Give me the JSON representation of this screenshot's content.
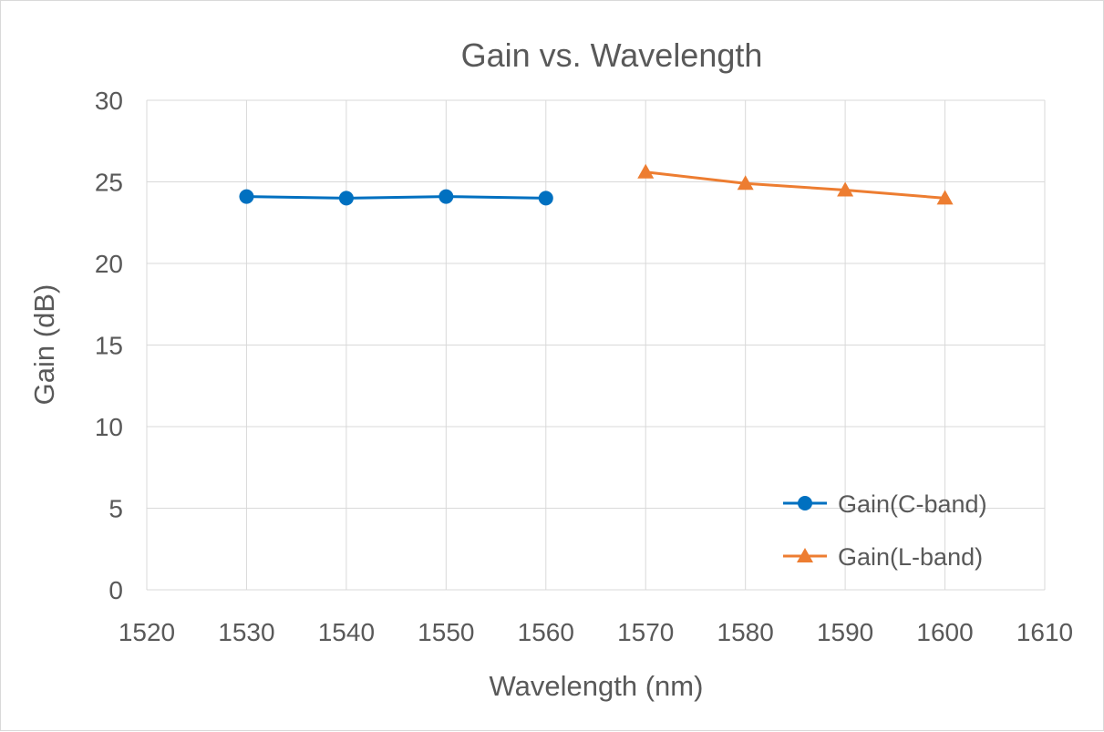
{
  "chart_data": {
    "type": "line",
    "title": "Gain vs. Wavelength",
    "xlabel": "Wavelength (nm)",
    "ylabel": "Gain (dB)",
    "xlim": [
      1520,
      1610
    ],
    "ylim": [
      0,
      30
    ],
    "xticks": [
      "1520",
      "1530",
      "1540",
      "1550",
      "1560",
      "1570",
      "1580",
      "1590",
      "1600",
      "1610"
    ],
    "yticks": [
      "0",
      "5",
      "10",
      "15",
      "20",
      "25",
      "30"
    ],
    "grid": true,
    "legend_position": "bottom-right",
    "series": [
      {
        "name": "Gain(C-band)",
        "marker": "circle",
        "color": "#0070C0",
        "x": [
          1530,
          1540,
          1550,
          1560
        ],
        "y": [
          24.1,
          24.0,
          24.1,
          24.0
        ]
      },
      {
        "name": "Gain(L-band)",
        "marker": "triangle",
        "color": "#ED7D31",
        "x": [
          1570,
          1580,
          1590,
          1600
        ],
        "y": [
          25.6,
          24.9,
          24.5,
          24.0
        ]
      }
    ]
  }
}
